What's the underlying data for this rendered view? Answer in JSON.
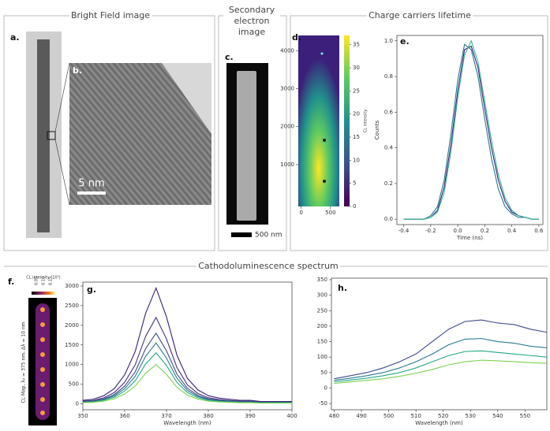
{
  "sections": {
    "bright_field": "Bright Field image",
    "secondary": "Secondary electron image",
    "lifetime": "Charge carriers lifetime",
    "cathodo": "Cathodoluminescence spectrum"
  },
  "panel_labels": [
    "a.",
    "b.",
    "c.",
    "d.",
    "e.",
    "f.",
    "g.",
    "h."
  ],
  "scale_bars": {
    "b": "5 nm",
    "c": "500 nm"
  },
  "panel_f": {
    "colorbar_title": "CL intensity (10³)",
    "colorbar_labels": [
      "0.05",
      "0.10",
      "0.15"
    ],
    "ylabel": "CL Map, λ₀ = 375 nm, Δλ = 10 nm"
  },
  "chart_data": [
    {
      "type": "heatmap",
      "xlim": [
        -50,
        650
      ],
      "ylim": [
        -100,
        4400
      ],
      "xticks": [
        0,
        500
      ],
      "yticks": [
        1000,
        2000,
        3000,
        4000
      ],
      "colorbar": {
        "label": "CL intensity",
        "lim": [
          0,
          37
        ],
        "ticks": [
          0,
          5,
          10,
          15,
          20,
          25,
          30,
          35
        ]
      }
    },
    {
      "type": "line",
      "xlabel": "Time (ns)",
      "ylabel": "Counts",
      "xlim": [
        -0.45,
        0.63
      ],
      "ylim": [
        -0.03,
        1.03
      ],
      "xticks": [
        -0.4,
        -0.2,
        {
          "value": 0,
          "label": "0.0"
        },
        0.2,
        0.4,
        0.6
      ],
      "yticks": [
        {
          "value": 0,
          "label": "0.0"
        },
        0.2,
        0.4,
        0.6,
        0.8,
        {
          "value": 1,
          "label": "1.0"
        }
      ],
      "x": [
        -0.4,
        -0.35,
        -0.3,
        -0.25,
        -0.2,
        -0.15,
        -0.1,
        -0.05,
        0,
        0.05,
        0.1,
        0.15,
        0.2,
        0.25,
        0.3,
        0.35,
        0.4,
        0.45,
        0.5,
        0.55,
        0.6
      ],
      "series": [
        {
          "color": "#3b1f7a",
          "values": [
            0,
            0,
            0,
            0,
            0.01,
            0.05,
            0.18,
            0.42,
            0.72,
            0.95,
            0.97,
            0.85,
            0.62,
            0.4,
            0.22,
            0.1,
            0.04,
            0.02,
            0.01,
            0,
            0
          ]
        },
        {
          "color": "#2a788e",
          "values": [
            0,
            0,
            0,
            0,
            0.02,
            0.07,
            0.22,
            0.48,
            0.78,
            0.98,
            0.95,
            0.8,
            0.56,
            0.34,
            0.17,
            0.07,
            0.03,
            0.01,
            0.01,
            0,
            0
          ]
        },
        {
          "color": "#35b79a",
          "values": [
            0,
            0,
            0,
            0,
            0.01,
            0.04,
            0.15,
            0.38,
            0.68,
            0.92,
            1.0,
            0.88,
            0.66,
            0.44,
            0.25,
            0.12,
            0.05,
            0.02,
            0.01,
            0,
            0
          ]
        }
      ]
    },
    {
      "type": "line",
      "xlabel": "Wavelength (nm)",
      "xlim": [
        350,
        400
      ],
      "ylim": [
        -150,
        3100
      ],
      "xticks": [
        350,
        360,
        370,
        380,
        390,
        400
      ],
      "yticks": [
        0,
        500,
        1000,
        1500,
        2000,
        2500,
        3000
      ],
      "x": [
        350,
        352.5,
        355,
        357.5,
        360,
        362.5,
        365,
        367.5,
        370,
        372.5,
        375,
        377.5,
        380,
        382.5,
        385,
        387.5,
        390,
        392.5,
        395,
        397.5,
        400
      ],
      "series": [
        {
          "color": "#3b1f7a",
          "values": [
            89,
            118,
            207,
            384,
            738,
            1328,
            2301,
            2950,
            2213,
            1239,
            649,
            354,
            207,
            148,
            118,
            89,
            89,
            59,
            59,
            59,
            59
          ]
        },
        {
          "color": "#46327e",
          "values": [
            66,
            88,
            154,
            286,
            550,
            990,
            1716,
            2200,
            1650,
            924,
            484,
            264,
            154,
            110,
            88,
            66,
            66,
            44,
            44,
            44,
            44
          ]
        },
        {
          "color": "#3e4a89",
          "values": [
            54,
            72,
            126,
            234,
            450,
            810,
            1404,
            1800,
            1350,
            756,
            396,
            216,
            126,
            90,
            72,
            54,
            54,
            36,
            36,
            36,
            36
          ]
        },
        {
          "color": "#2a788e",
          "values": [
            47,
            62,
            109,
            202,
            388,
            698,
            1209,
            1550,
            1163,
            651,
            341,
            186,
            109,
            78,
            62,
            47,
            47,
            31,
            31,
            31,
            31
          ]
        },
        {
          "color": "#22a884",
          "values": [
            39,
            52,
            91,
            169,
            325,
            585,
            1014,
            1300,
            975,
            546,
            286,
            156,
            91,
            65,
            52,
            39,
            39,
            26,
            26,
            26,
            26
          ]
        },
        {
          "color": "#7ad151",
          "values": [
            30,
            40,
            70,
            130,
            250,
            450,
            780,
            1000,
            750,
            420,
            220,
            120,
            70,
            50,
            40,
            30,
            30,
            20,
            20,
            20,
            20
          ]
        }
      ]
    },
    {
      "type": "line",
      "xlabel": "Wavelength (nm)",
      "xlim": [
        479,
        558
      ],
      "ylim": [
        -70,
        355
      ],
      "xticks": [
        480,
        490,
        500,
        510,
        520,
        530,
        540,
        550
      ],
      "yticks": [
        -50,
        0,
        50,
        100,
        150,
        200,
        250,
        300,
        350
      ],
      "x": [
        480,
        486,
        492,
        498,
        504,
        510,
        516,
        522,
        528,
        534,
        540,
        546,
        552,
        558
      ],
      "series": [
        {
          "color": "#3e4a89",
          "values": [
            30,
            40,
            50,
            65,
            85,
            110,
            150,
            190,
            215,
            220,
            210,
            205,
            190,
            180
          ]
        },
        {
          "color": "#2a788e",
          "values": [
            25,
            32,
            40,
            50,
            65,
            85,
            110,
            140,
            158,
            160,
            150,
            145,
            135,
            130
          ]
        },
        {
          "color": "#22a884",
          "values": [
            20,
            26,
            32,
            40,
            50,
            65,
            85,
            105,
            118,
            120,
            115,
            110,
            105,
            100
          ]
        },
        {
          "color": "#7ad151",
          "values": [
            15,
            20,
            25,
            30,
            38,
            48,
            60,
            75,
            85,
            90,
            88,
            85,
            82,
            80
          ]
        }
      ]
    }
  ]
}
